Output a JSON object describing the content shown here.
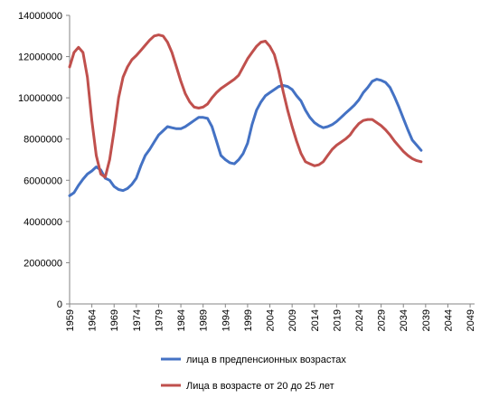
{
  "chart_data": {
    "type": "line",
    "title": "",
    "xlabel": "",
    "ylabel": "",
    "ylim": [
      0,
      14000000
    ],
    "yticks": [
      0,
      2000000,
      4000000,
      6000000,
      8000000,
      10000000,
      12000000,
      14000000
    ],
    "ytick_labels": [
      "0",
      "2000000",
      "4000000",
      "6000000",
      "8000000",
      "10000000",
      "12000000",
      "14000000"
    ],
    "xlim": [
      1959,
      2050
    ],
    "xticks": [
      1959,
      1964,
      1969,
      1974,
      1979,
      1984,
      1989,
      1994,
      1999,
      2004,
      2009,
      2014,
      2019,
      2024,
      2029,
      2034,
      2039,
      2044,
      2049
    ],
    "xtick_labels": [
      "1959",
      "1964",
      "1969",
      "1974",
      "1979",
      "1984",
      "1989",
      "1994",
      "1999",
      "2004",
      "2009",
      "2014",
      "2019",
      "2024",
      "2029",
      "2034",
      "2039",
      "2044",
      "2049"
    ],
    "grid": false,
    "legend_position": "bottom",
    "series": [
      {
        "name": "лица в предпенсионных возрастах",
        "color": "#4472C4",
        "points": [
          [
            1959,
            5250000
          ],
          [
            1960,
            5400000
          ],
          [
            1961,
            5750000
          ],
          [
            1962,
            6050000
          ],
          [
            1963,
            6300000
          ],
          [
            1964,
            6450000
          ],
          [
            1965,
            6650000
          ],
          [
            1966,
            6500000
          ],
          [
            1967,
            6100000
          ],
          [
            1968,
            6000000
          ],
          [
            1969,
            5700000
          ],
          [
            1970,
            5550000
          ],
          [
            1971,
            5500000
          ],
          [
            1972,
            5600000
          ],
          [
            1973,
            5800000
          ],
          [
            1974,
            6100000
          ],
          [
            1975,
            6700000
          ],
          [
            1976,
            7200000
          ],
          [
            1977,
            7500000
          ],
          [
            1978,
            7850000
          ],
          [
            1979,
            8200000
          ],
          [
            1980,
            8400000
          ],
          [
            1981,
            8600000
          ],
          [
            1982,
            8550000
          ],
          [
            1983,
            8500000
          ],
          [
            1984,
            8500000
          ],
          [
            1985,
            8600000
          ],
          [
            1986,
            8750000
          ],
          [
            1987,
            8900000
          ],
          [
            1988,
            9050000
          ],
          [
            1989,
            9050000
          ],
          [
            1990,
            9000000
          ],
          [
            1991,
            8600000
          ],
          [
            1992,
            7900000
          ],
          [
            1993,
            7200000
          ],
          [
            1994,
            7000000
          ],
          [
            1995,
            6850000
          ],
          [
            1996,
            6800000
          ],
          [
            1997,
            7000000
          ],
          [
            1998,
            7300000
          ],
          [
            1999,
            7800000
          ],
          [
            2000,
            8700000
          ],
          [
            2001,
            9400000
          ],
          [
            2002,
            9800000
          ],
          [
            2003,
            10100000
          ],
          [
            2004,
            10250000
          ],
          [
            2005,
            10400000
          ],
          [
            2006,
            10550000
          ],
          [
            2007,
            10600000
          ],
          [
            2008,
            10550000
          ],
          [
            2009,
            10400000
          ],
          [
            2010,
            10100000
          ],
          [
            2011,
            9850000
          ],
          [
            2012,
            9400000
          ],
          [
            2013,
            9050000
          ],
          [
            2014,
            8800000
          ],
          [
            2015,
            8650000
          ],
          [
            2016,
            8550000
          ],
          [
            2017,
            8600000
          ],
          [
            2018,
            8700000
          ],
          [
            2019,
            8850000
          ],
          [
            2020,
            9050000
          ],
          [
            2021,
            9250000
          ],
          [
            2022,
            9450000
          ],
          [
            2023,
            9650000
          ],
          [
            2024,
            9900000
          ],
          [
            2025,
            10250000
          ],
          [
            2026,
            10500000
          ],
          [
            2027,
            10800000
          ],
          [
            2028,
            10900000
          ],
          [
            2029,
            10850000
          ],
          [
            2030,
            10750000
          ],
          [
            2031,
            10500000
          ],
          [
            2032,
            10050000
          ],
          [
            2033,
            9550000
          ],
          [
            2034,
            9000000
          ],
          [
            2035,
            8450000
          ],
          [
            2036,
            7950000
          ],
          [
            2037,
            7700000
          ],
          [
            2038,
            7450000
          ]
        ]
      },
      {
        "name": "Лица в возрасте от 20 до 25 лет",
        "color": "#C0504D",
        "points": [
          [
            1959,
            11500000
          ],
          [
            1960,
            12200000
          ],
          [
            1961,
            12450000
          ],
          [
            1962,
            12200000
          ],
          [
            1963,
            11000000
          ],
          [
            1964,
            8900000
          ],
          [
            1965,
            7200000
          ],
          [
            1966,
            6300000
          ],
          [
            1967,
            6150000
          ],
          [
            1968,
            7000000
          ],
          [
            1969,
            8400000
          ],
          [
            1970,
            10000000
          ],
          [
            1971,
            11000000
          ],
          [
            1972,
            11500000
          ],
          [
            1973,
            11850000
          ],
          [
            1974,
            12050000
          ],
          [
            1975,
            12300000
          ],
          [
            1976,
            12550000
          ],
          [
            1977,
            12800000
          ],
          [
            1978,
            13000000
          ],
          [
            1979,
            13050000
          ],
          [
            1980,
            13000000
          ],
          [
            1981,
            12700000
          ],
          [
            1982,
            12200000
          ],
          [
            1983,
            11500000
          ],
          [
            1984,
            10800000
          ],
          [
            1985,
            10200000
          ],
          [
            1986,
            9800000
          ],
          [
            1987,
            9550000
          ],
          [
            1988,
            9500000
          ],
          [
            1989,
            9550000
          ],
          [
            1990,
            9700000
          ],
          [
            1991,
            10000000
          ],
          [
            1992,
            10250000
          ],
          [
            1993,
            10450000
          ],
          [
            1994,
            10600000
          ],
          [
            1995,
            10750000
          ],
          [
            1996,
            10900000
          ],
          [
            1997,
            11100000
          ],
          [
            1998,
            11500000
          ],
          [
            1999,
            11900000
          ],
          [
            2000,
            12200000
          ],
          [
            2001,
            12500000
          ],
          [
            2002,
            12700000
          ],
          [
            2003,
            12750000
          ],
          [
            2004,
            12500000
          ],
          [
            2005,
            12100000
          ],
          [
            2006,
            11300000
          ],
          [
            2007,
            10300000
          ],
          [
            2008,
            9400000
          ],
          [
            2009,
            8600000
          ],
          [
            2010,
            7900000
          ],
          [
            2011,
            7300000
          ],
          [
            2012,
            6900000
          ],
          [
            2013,
            6800000
          ],
          [
            2014,
            6700000
          ],
          [
            2015,
            6750000
          ],
          [
            2016,
            6900000
          ],
          [
            2017,
            7200000
          ],
          [
            2018,
            7500000
          ],
          [
            2019,
            7700000
          ],
          [
            2020,
            7850000
          ],
          [
            2021,
            8000000
          ],
          [
            2022,
            8200000
          ],
          [
            2023,
            8500000
          ],
          [
            2024,
            8750000
          ],
          [
            2025,
            8900000
          ],
          [
            2026,
            8950000
          ],
          [
            2027,
            8950000
          ],
          [
            2028,
            8800000
          ],
          [
            2029,
            8650000
          ],
          [
            2030,
            8450000
          ],
          [
            2031,
            8200000
          ],
          [
            2032,
            7900000
          ],
          [
            2033,
            7650000
          ],
          [
            2034,
            7400000
          ],
          [
            2035,
            7200000
          ],
          [
            2036,
            7050000
          ],
          [
            2037,
            6950000
          ],
          [
            2038,
            6900000
          ]
        ]
      }
    ]
  }
}
